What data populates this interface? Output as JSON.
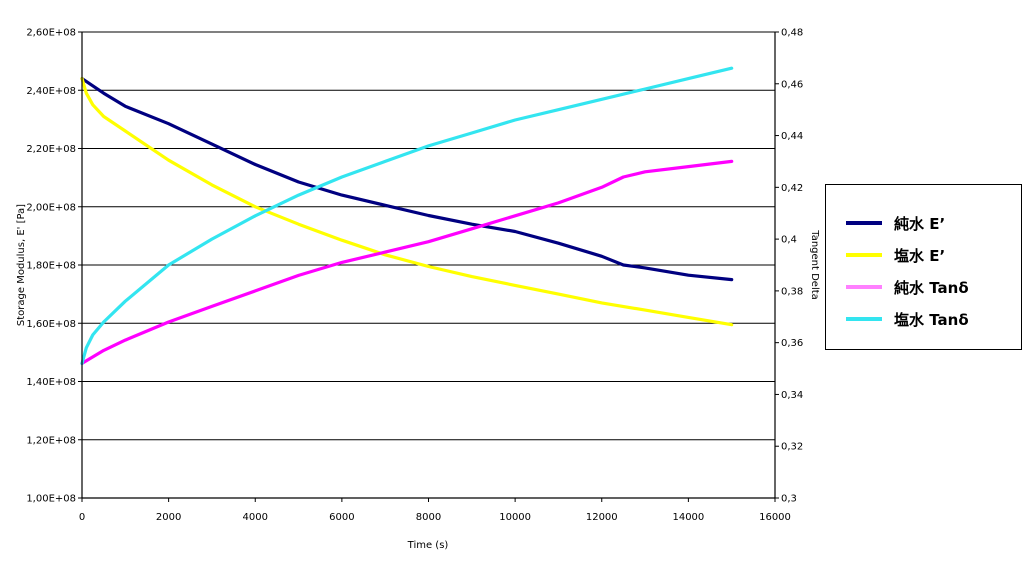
{
  "chart_data": {
    "type": "line",
    "xlabel": "Time (s)",
    "ylabel": "Storage Modulus, E' [Pa]",
    "y2label": "Tangent Delta",
    "xlim": [
      0,
      16000
    ],
    "ylim": [
      100000000,
      260000000
    ],
    "y2lim": [
      0.3,
      0.48
    ],
    "x_ticks": [
      "0",
      "2000",
      "4000",
      "6000",
      "8000",
      "10000",
      "12000",
      "14000",
      "16000"
    ],
    "y_ticks": [
      "1,00E+08",
      "1,20E+08",
      "1,40E+08",
      "1,60E+08",
      "1,80E+08",
      "2,00E+08",
      "2,20E+08",
      "2,40E+08",
      "2,60E+08"
    ],
    "y2_ticks": [
      "0,3",
      "0,32",
      "0,34",
      "0,36",
      "0,38",
      "0,4",
      "0,42",
      "0,44",
      "0,46",
      "0,48"
    ],
    "grid": true,
    "legend_position": "right",
    "series": [
      {
        "name": "純水 E’",
        "color": "#000080",
        "axis": "left",
        "x": [
          0,
          500,
          1000,
          2000,
          3000,
          4000,
          5000,
          6000,
          7000,
          8000,
          9000,
          10000,
          11000,
          12000,
          12500,
          13000,
          14000,
          15000
        ],
        "y": [
          244000000,
          239000000,
          234500000,
          228500000,
          221500000,
          214500000,
          208500000,
          204000000,
          200500000,
          197000000,
          194000000,
          191500000,
          187500000,
          183000000,
          180000000,
          179000000,
          176500000,
          175000000
        ]
      },
      {
        "name": "塩水 E’",
        "color": "#ffff00",
        "axis": "left",
        "x": [
          0,
          100,
          250,
          500,
          1000,
          2000,
          3000,
          4000,
          5000,
          6000,
          7000,
          8000,
          9000,
          10000,
          11000,
          12000,
          13000,
          14000,
          15000
        ],
        "y": [
          244000000,
          239000000,
          235000000,
          231000000,
          226000000,
          216000000,
          207500000,
          200000000,
          194000000,
          188500000,
          183500000,
          179500000,
          176000000,
          173000000,
          170000000,
          167000000,
          164500000,
          162000000,
          159500000
        ]
      },
      {
        "name": "純水 Tanδ",
        "color": "#ff00ff",
        "axis": "right",
        "x": [
          0,
          500,
          1000,
          2000,
          3000,
          4000,
          5000,
          6000,
          7000,
          8000,
          9000,
          10000,
          11000,
          12000,
          12500,
          13000,
          14000,
          15000
        ],
        "y": [
          0.352,
          0.357,
          0.361,
          0.368,
          0.374,
          0.38,
          0.386,
          0.391,
          0.395,
          0.399,
          0.404,
          0.409,
          0.414,
          0.42,
          0.424,
          0.426,
          0.428,
          0.43
        ]
      },
      {
        "name": "塩水 Tanδ",
        "color": "#33e5f0",
        "axis": "right",
        "x": [
          0,
          100,
          250,
          500,
          1000,
          2000,
          3000,
          4000,
          5000,
          6000,
          7000,
          8000,
          9000,
          10000,
          11000,
          12000,
          13000,
          14000,
          15000
        ],
        "y": [
          0.352,
          0.358,
          0.363,
          0.368,
          0.376,
          0.39,
          0.4,
          0.409,
          0.417,
          0.424,
          0.43,
          0.436,
          0.441,
          0.446,
          0.45,
          0.454,
          0.458,
          0.462,
          0.466
        ]
      }
    ]
  }
}
